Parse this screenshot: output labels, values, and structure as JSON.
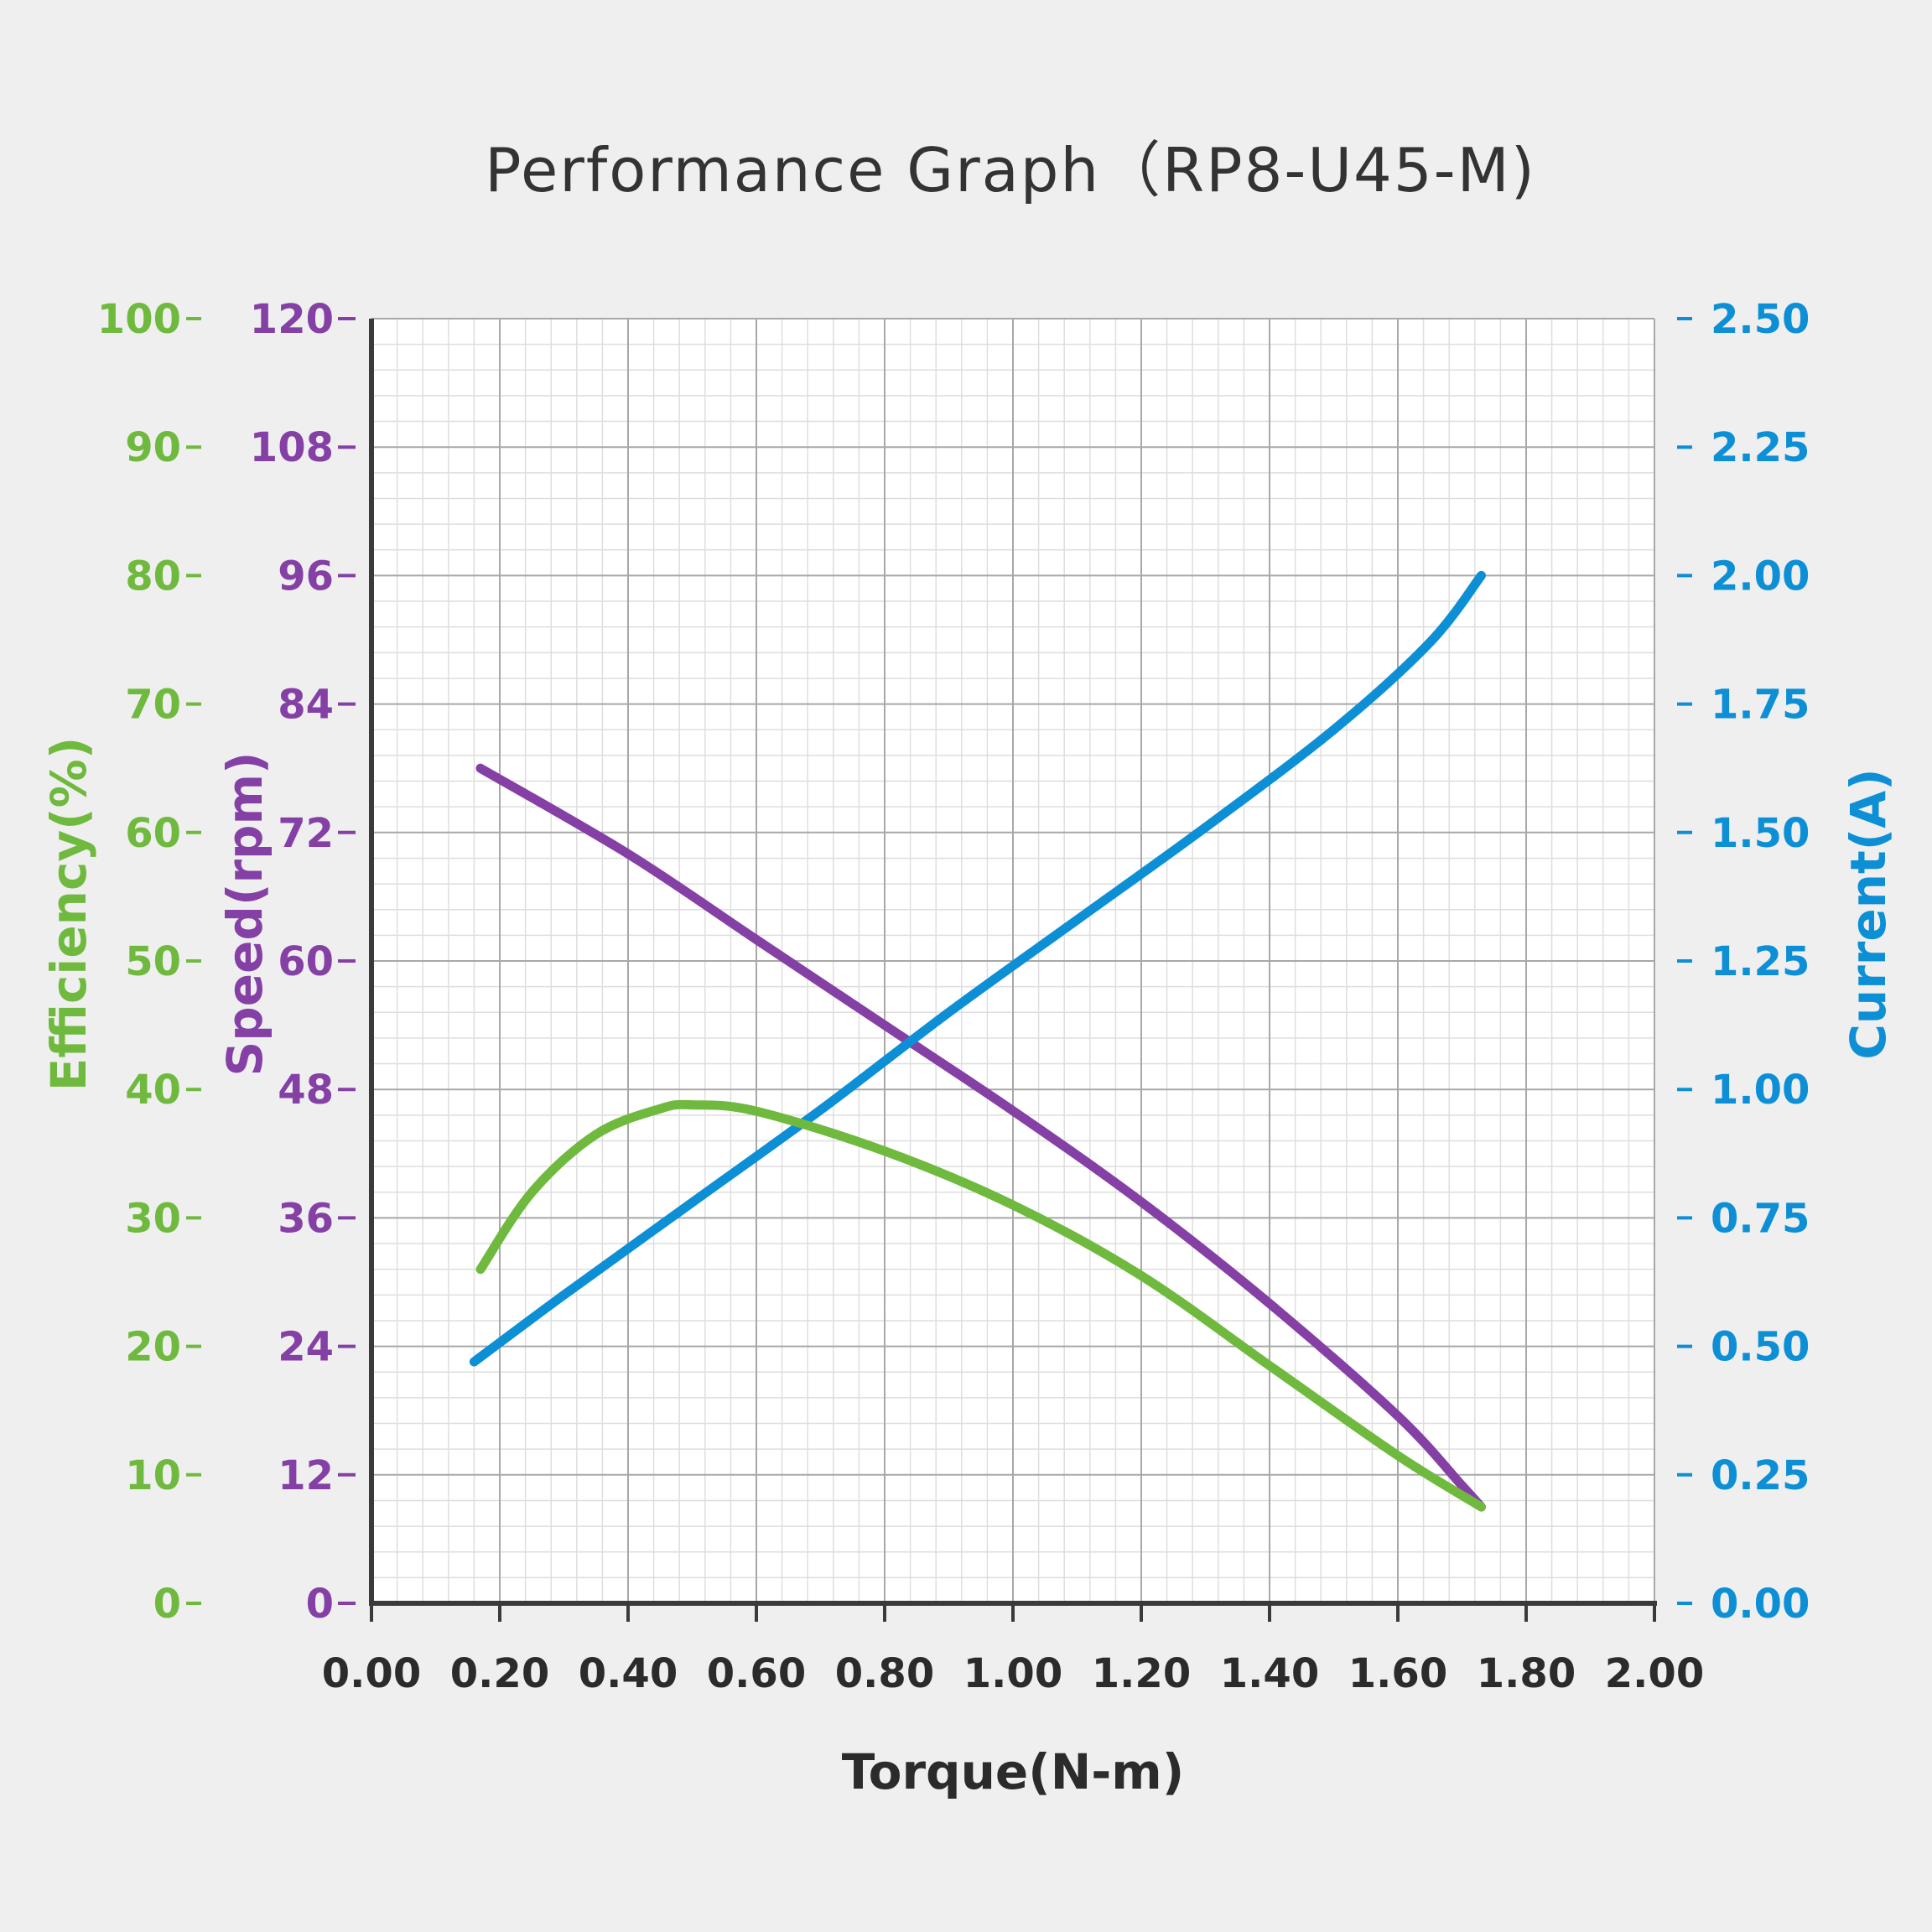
{
  "chart_data": {
    "type": "line",
    "title": "Performance Graph（RP8-U45-M)",
    "xlabel": "Torque(N-m)",
    "xlim": [
      0,
      2.0
    ],
    "x_ticks": [
      "0.00",
      "0.20",
      "0.40",
      "0.60",
      "0.80",
      "1.00",
      "1.20",
      "1.40",
      "1.60",
      "1.80",
      "2.00"
    ],
    "grid": true,
    "axes": {
      "efficiency": {
        "label": "Efficiency(%)",
        "position": "outer-left",
        "color": "#6fba3e",
        "ylim": [
          0,
          100
        ],
        "ticks": [
          "0",
          "10",
          "20",
          "30",
          "40",
          "50",
          "60",
          "70",
          "80",
          "90",
          "100"
        ]
      },
      "speed": {
        "label": "Speed(rpm)",
        "position": "inner-left",
        "color": "#8540a6",
        "ylim": [
          0,
          120
        ],
        "ticks": [
          "0",
          "12",
          "24",
          "36",
          "48",
          "60",
          "72",
          "84",
          "96",
          "108",
          "120"
        ]
      },
      "current": {
        "label": "Current(A)",
        "position": "right",
        "color": "#0d8fd6",
        "ylim": [
          0,
          2.5
        ],
        "ticks": [
          "0.00",
          "0.25",
          "0.50",
          "0.75",
          "1.00",
          "1.25",
          "1.50",
          "1.75",
          "2.00",
          "2.25",
          "2.50"
        ]
      }
    },
    "series": [
      {
        "axis": "speed",
        "color": "#8540a6",
        "x": [
          0.17,
          0.4,
          0.6,
          0.8,
          1.0,
          1.2,
          1.4,
          1.6,
          1.7,
          1.73
        ],
        "values": [
          78,
          70,
          62,
          54,
          46,
          37.5,
          28,
          17.5,
          11,
          9
        ]
      },
      {
        "axis": "current",
        "color": "#0d8fd6",
        "x": [
          0.16,
          0.3,
          0.5,
          0.7,
          0.9,
          1.1,
          1.3,
          1.5,
          1.65,
          1.73
        ],
        "values": [
          0.47,
          0.6,
          0.78,
          0.96,
          1.15,
          1.33,
          1.51,
          1.7,
          1.87,
          2.0
        ]
      },
      {
        "axis": "efficiency",
        "color": "#6fba3e",
        "x": [
          0.17,
          0.25,
          0.35,
          0.45,
          0.5,
          0.6,
          0.8,
          1.0,
          1.2,
          1.4,
          1.6,
          1.73
        ],
        "values": [
          26,
          32,
          36.5,
          38.5,
          38.8,
          38.3,
          35.2,
          31,
          25.5,
          18.5,
          11.5,
          7.5
        ]
      }
    ]
  }
}
